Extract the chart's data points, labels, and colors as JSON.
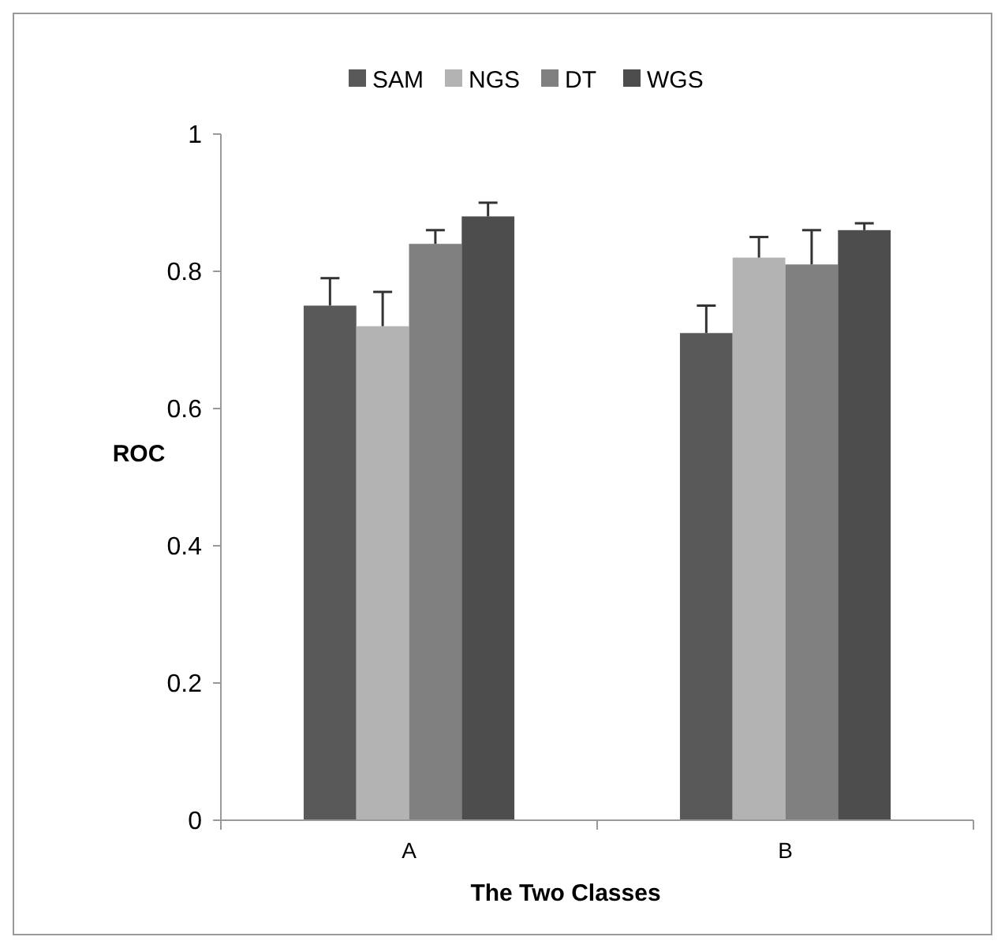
{
  "chart_data": {
    "type": "bar",
    "xlabel": "The Two Classes",
    "ylabel": "ROC",
    "categories": [
      "A",
      "B"
    ],
    "series": [
      {
        "name": "SAM",
        "color": "#595959",
        "values": [
          0.75,
          0.71
        ],
        "errors": [
          0.04,
          0.04
        ]
      },
      {
        "name": "NGS",
        "color": "#b3b3b3",
        "values": [
          0.72,
          0.82
        ],
        "errors": [
          0.05,
          0.03
        ]
      },
      {
        "name": "DT",
        "color": "#808080",
        "values": [
          0.84,
          0.81
        ],
        "errors": [
          0.02,
          0.05
        ]
      },
      {
        "name": "WGS",
        "color": "#4d4d4d",
        "values": [
          0.88,
          0.86
        ],
        "errors": [
          0.02,
          0.01
        ]
      }
    ],
    "ylim": [
      0,
      1
    ],
    "yticks": [
      0,
      0.2,
      0.4,
      0.6,
      0.8,
      1
    ],
    "grid": false,
    "legend": "top"
  }
}
